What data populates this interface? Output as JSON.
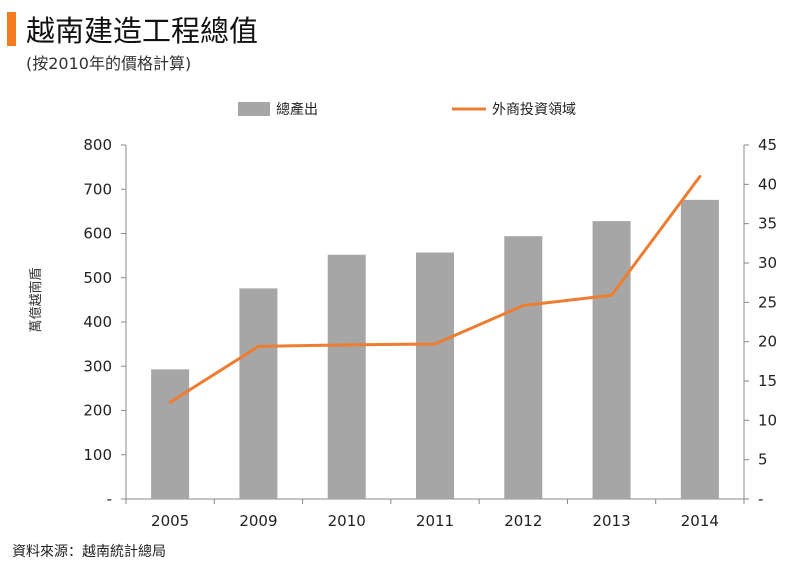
{
  "title": "越南建造工程總值",
  "subtitle": "(按2010年的價格計算)",
  "source": "資料來源：越南統計總局",
  "colors": {
    "accent": "#f47b20",
    "bar": "#a6a6a6",
    "line": "#ed7d31",
    "axis": "#888888"
  },
  "chart_data": {
    "type": "bar",
    "categories": [
      "2005",
      "2009",
      "2010",
      "2011",
      "2012",
      "2013",
      "2014"
    ],
    "ylabel": "萬億越南盾",
    "ylim": [
      0,
      800
    ],
    "y2lim": [
      0,
      45
    ],
    "yticks": [
      "-",
      "100",
      "200",
      "300",
      "400",
      "500",
      "600",
      "700",
      "800"
    ],
    "y2ticks": [
      "-",
      "5",
      "10",
      "15",
      "20",
      "25",
      "30",
      "35",
      "40",
      "45"
    ],
    "legend_position": "top",
    "series": [
      {
        "name": "總產出",
        "type": "bar",
        "axis": "left",
        "values": [
          293,
          476,
          552,
          557,
          594,
          628,
          676
        ]
      },
      {
        "name": "外商投資領域",
        "type": "line",
        "axis": "right",
        "values": [
          12.3,
          19.4,
          19.6,
          19.7,
          24.6,
          25.9,
          41.0
        ]
      }
    ]
  }
}
